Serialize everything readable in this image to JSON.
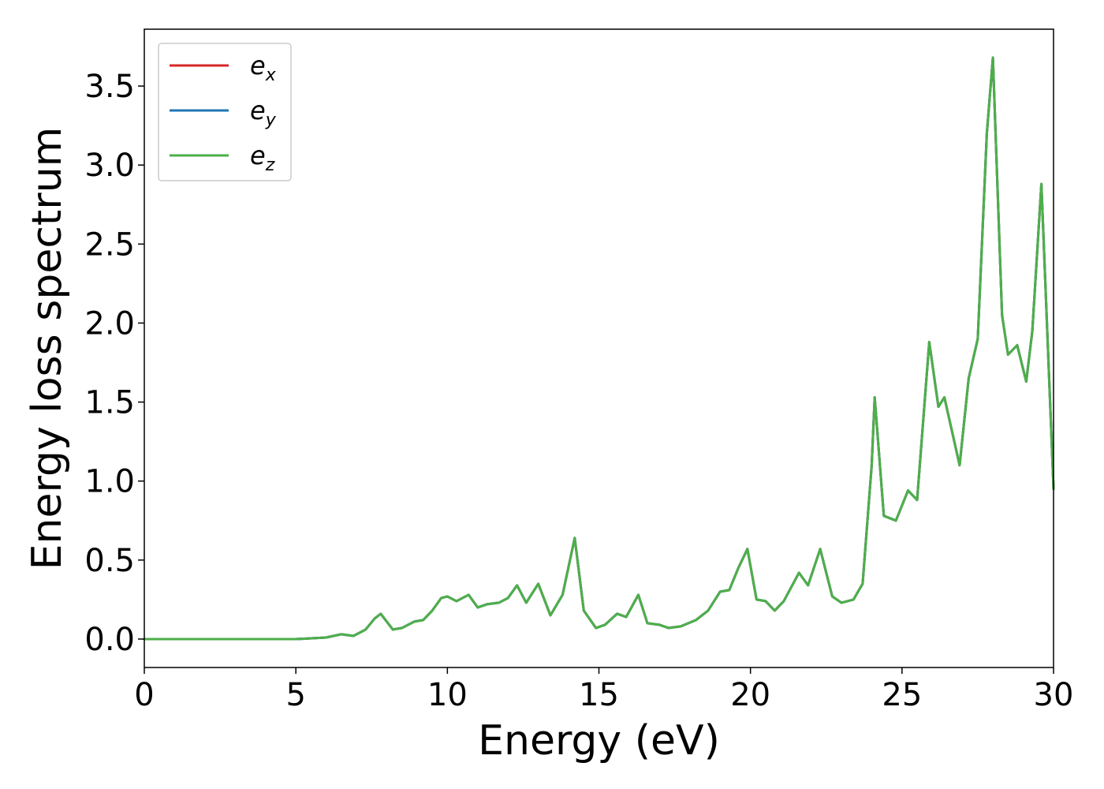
{
  "chart_data": {
    "type": "line",
    "xlabel": "Energy (eV)",
    "ylabel": "Energy loss spectrum",
    "xlim": [
      0,
      30
    ],
    "ylim": [
      -0.18,
      3.86
    ],
    "xticks": [
      0,
      5,
      10,
      15,
      20,
      25,
      30
    ],
    "xtick_labels": [
      "0",
      "5",
      "10",
      "15",
      "20",
      "25",
      "30"
    ],
    "yticks": [
      0.0,
      0.5,
      1.0,
      1.5,
      2.0,
      2.5,
      3.0,
      3.5
    ],
    "ytick_labels": [
      "0.0",
      "0.5",
      "1.0",
      "1.5",
      "2.0",
      "2.5",
      "3.0",
      "3.5"
    ],
    "grid": false,
    "legend": {
      "position": "top-left",
      "entries": [
        {
          "base": "e",
          "sub": "x",
          "color": "#d62728"
        },
        {
          "base": "e",
          "sub": "y",
          "color": "#1f77b4"
        },
        {
          "base": "e",
          "sub": "z",
          "color": "#4daf4a"
        }
      ]
    },
    "series": [
      {
        "name": "e_x",
        "color": "#d62728",
        "visible_on_top": false
      },
      {
        "name": "e_y",
        "color": "#1f77b4",
        "visible_on_top": false
      },
      {
        "name": "e_z",
        "color": "#4daf4a",
        "visible_on_top": true
      }
    ],
    "x": [
      0,
      5,
      6.0,
      6.5,
      6.9,
      7.3,
      7.6,
      7.8,
      8.0,
      8.2,
      8.5,
      8.9,
      9.2,
      9.5,
      9.8,
      10.0,
      10.3,
      10.7,
      11.0,
      11.3,
      11.7,
      12.0,
      12.3,
      12.6,
      13.0,
      13.4,
      13.8,
      14.2,
      14.5,
      14.9,
      15.2,
      15.6,
      15.9,
      16.3,
      16.6,
      17.0,
      17.3,
      17.7,
      18.2,
      18.6,
      19.0,
      19.3,
      19.6,
      19.9,
      20.2,
      20.5,
      20.8,
      21.1,
      21.6,
      21.9,
      22.3,
      22.7,
      23.0,
      23.4,
      23.7,
      24.0,
      24.1,
      24.4,
      24.8,
      25.2,
      25.5,
      25.9,
      26.2,
      26.4,
      26.9,
      27.2,
      27.5,
      27.8,
      28.0,
      28.3,
      28.5,
      28.8,
      29.1,
      29.3,
      29.6,
      30.0
    ],
    "y": [
      0.0,
      0.0,
      0.01,
      0.03,
      0.02,
      0.06,
      0.13,
      0.16,
      0.11,
      0.06,
      0.07,
      0.11,
      0.12,
      0.18,
      0.26,
      0.27,
      0.24,
      0.28,
      0.2,
      0.22,
      0.23,
      0.26,
      0.34,
      0.23,
      0.35,
      0.15,
      0.28,
      0.64,
      0.18,
      0.07,
      0.09,
      0.16,
      0.14,
      0.28,
      0.1,
      0.09,
      0.07,
      0.08,
      0.12,
      0.18,
      0.3,
      0.31,
      0.45,
      0.57,
      0.25,
      0.24,
      0.18,
      0.24,
      0.42,
      0.34,
      0.57,
      0.27,
      0.23,
      0.25,
      0.35,
      1.1,
      1.53,
      0.78,
      0.75,
      0.94,
      0.88,
      1.88,
      1.47,
      1.53,
      1.1,
      1.65,
      1.9,
      3.2,
      3.68,
      2.05,
      1.8,
      1.86,
      1.63,
      1.95,
      2.88,
      0.95
    ]
  }
}
